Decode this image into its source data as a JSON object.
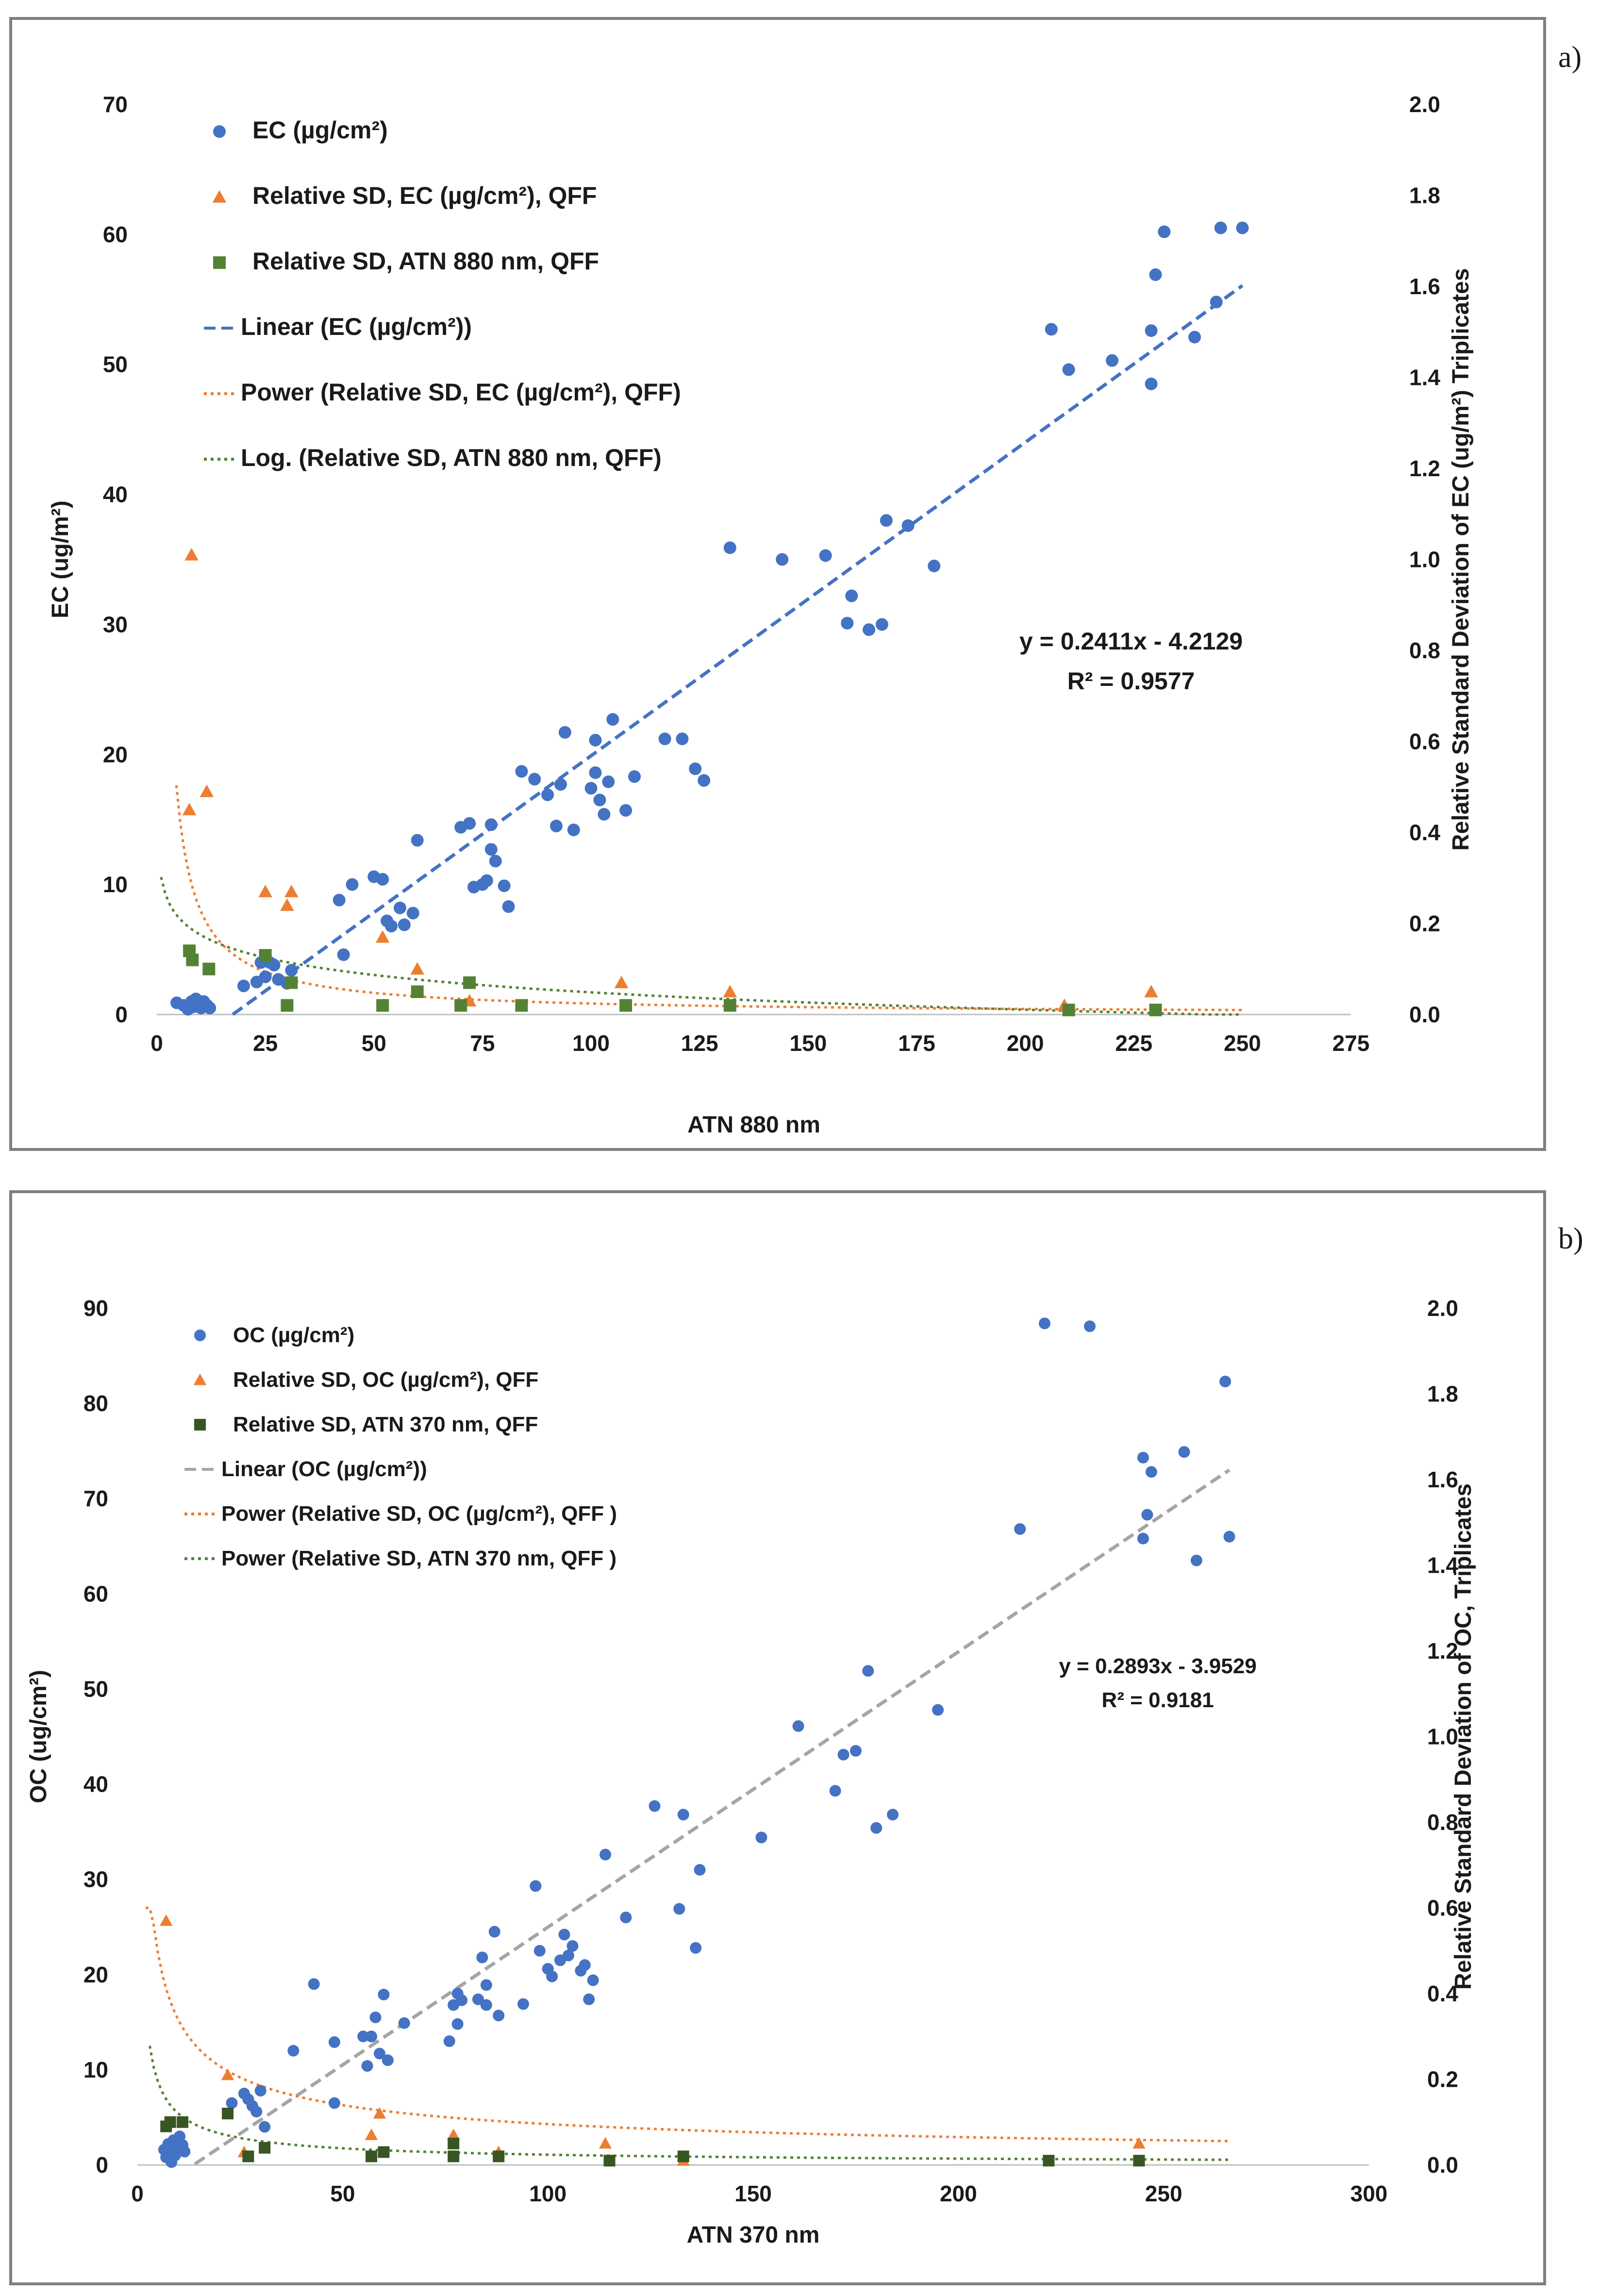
{
  "colors": {
    "ec": "#4472C4",
    "oc": "#4472C4",
    "rsd_mass": "#ED7D31",
    "rsd_atn": "#548235",
    "rsd_atn_b": "#375623",
    "fit_ec": "#4472C4",
    "fit_oc": "#A5A5A5",
    "fit_power": "#ED7D31",
    "fit_green": "#548235",
    "frame": "#7f7f7f"
  },
  "chart_data": [
    {
      "type": "scatter",
      "panel_label": "a)",
      "xlabel": "ATN 880 nm",
      "ylabel_left": "EC (ug/m²)",
      "ylabel_right": "Relative Standard Deviation of EC (ug/m²) Triplicates",
      "xlim": [
        0,
        275
      ],
      "ylim_left": [
        0,
        70
      ],
      "ylim_right": [
        0,
        2.0
      ],
      "x_ticks": [
        "0",
        "25",
        "50",
        "75",
        "100",
        "125",
        "150",
        "175",
        "200",
        "225",
        "250",
        "275"
      ],
      "y_left_ticks": [
        "0",
        "10",
        "20",
        "30",
        "40",
        "50",
        "60",
        "70"
      ],
      "y_right_ticks": [
        "0.0",
        "0.2",
        "0.4",
        "0.6",
        "0.8",
        "1.0",
        "1.2",
        "1.4",
        "1.6",
        "1.8",
        "2.0"
      ],
      "legend": [
        "EC (µg/cm²)",
        "Relative SD,  EC (µg/cm²), QFF",
        "Relative SD, ATN 880 nm, QFF",
        "Linear (EC (µg/cm²))",
        "Power (Relative SD,  EC (µg/cm²), QFF)",
        "Log. (Relative SD, ATN 880 nm, QFF)"
      ],
      "equation": "y = 0.2411x - 4.2129",
      "r2": "R² = 0.9577",
      "fit": {
        "slope": 0.2411,
        "intercept": -4.2129,
        "x_range": [
          17.5,
          250
        ]
      },
      "power_fit": {
        "a": 2.2,
        "b": -0.98,
        "x_range": [
          4.5,
          250
        ]
      },
      "log_fit": {
        "a": 0.302,
        "b": -0.055,
        "x_range": [
          1,
          250
        ]
      },
      "series": [
        {
          "name": "EC (µg/cm²)",
          "axis": "left",
          "marker": "circle",
          "points": [
            [
              4.6,
              0.9
            ],
            [
              6.2,
              0.7
            ],
            [
              7.2,
              0.4
            ],
            [
              8.0,
              1.0
            ],
            [
              8.5,
              0.6
            ],
            [
              9.0,
              1.2
            ],
            [
              9.6,
              0.8
            ],
            [
              10.2,
              0.5
            ],
            [
              10.8,
              1.0
            ],
            [
              11.6,
              0.7
            ],
            [
              12.2,
              0.5
            ],
            [
              20,
              2.2
            ],
            [
              23,
              2.5
            ],
            [
              24,
              4.0
            ],
            [
              25,
              2.9
            ],
            [
              26,
              4.0
            ],
            [
              27,
              3.8
            ],
            [
              28,
              2.7
            ],
            [
              30,
              2.4
            ],
            [
              31,
              3.4
            ],
            [
              42,
              8.8
            ],
            [
              43,
              4.6
            ],
            [
              45,
              10.0
            ],
            [
              50,
              10.6
            ],
            [
              52,
              10.4
            ],
            [
              53,
              7.2
            ],
            [
              54,
              6.8
            ],
            [
              56,
              8.2
            ],
            [
              57,
              6.9
            ],
            [
              59,
              7.8
            ],
            [
              60,
              13.4
            ],
            [
              70,
              14.4
            ],
            [
              72,
              14.7
            ],
            [
              73,
              9.8
            ],
            [
              75,
              10.0
            ],
            [
              76,
              10.3
            ],
            [
              77,
              14.6
            ],
            [
              77,
              12.7
            ],
            [
              78,
              11.8
            ],
            [
              80,
              9.9
            ],
            [
              81,
              8.3
            ],
            [
              84,
              18.7
            ],
            [
              87,
              18.1
            ],
            [
              90,
              16.9
            ],
            [
              92,
              14.5
            ],
            [
              93,
              17.7
            ],
            [
              94,
              21.7
            ],
            [
              96,
              14.2
            ],
            [
              100,
              17.4
            ],
            [
              101,
              21.1
            ],
            [
              101,
              18.6
            ],
            [
              102,
              16.5
            ],
            [
              103,
              15.4
            ],
            [
              104,
              17.9
            ],
            [
              105,
              22.7
            ],
            [
              108,
              15.7
            ],
            [
              110,
              18.3
            ],
            [
              117,
              21.2
            ],
            [
              121,
              21.2
            ],
            [
              124,
              18.9
            ],
            [
              126,
              18.0
            ],
            [
              132,
              35.9
            ],
            [
              144,
              35.0
            ],
            [
              154,
              35.3
            ],
            [
              159,
              30.1
            ],
            [
              160,
              32.2
            ],
            [
              164,
              29.6
            ],
            [
              167,
              30.0
            ],
            [
              168,
              38.0
            ],
            [
              173,
              37.6
            ],
            [
              179,
              34.5
            ],
            [
              206,
              52.7
            ],
            [
              210,
              49.6
            ],
            [
              220,
              50.3
            ],
            [
              229,
              48.5
            ],
            [
              229,
              52.6
            ],
            [
              230,
              56.9
            ],
            [
              232,
              60.2
            ],
            [
              239,
              52.1
            ],
            [
              244,
              54.8
            ],
            [
              245,
              60.5
            ],
            [
              250,
              60.5
            ]
          ]
        },
        {
          "name": "Relative SD,  EC (µg/cm²), QFF",
          "axis": "right",
          "marker": "triangle",
          "points": [
            [
              7.5,
              0.45
            ],
            [
              8.0,
              1.01
            ],
            [
              11.5,
              0.49
            ],
            [
              25,
              0.27
            ],
            [
              30,
              0.24
            ],
            [
              31,
              0.27
            ],
            [
              52,
              0.17
            ],
            [
              60,
              0.1
            ],
            [
              72,
              0.03
            ],
            [
              107,
              0.07
            ],
            [
              132,
              0.05
            ],
            [
              209,
              0.02
            ],
            [
              229,
              0.05
            ]
          ]
        },
        {
          "name": "Relative SD, ATN 880 nm, QFF",
          "axis": "right",
          "marker": "square",
          "points": [
            [
              7.5,
              0.14
            ],
            [
              8.2,
              0.12
            ],
            [
              12,
              0.1
            ],
            [
              25,
              0.13
            ],
            [
              30,
              0.02
            ],
            [
              31,
              0.07
            ],
            [
              52,
              0.02
            ],
            [
              60,
              0.05
            ],
            [
              70,
              0.02
            ],
            [
              72,
              0.07
            ],
            [
              84,
              0.02
            ],
            [
              108,
              0.02
            ],
            [
              132,
              0.02
            ],
            [
              210,
              0.01
            ],
            [
              230,
              0.01
            ]
          ]
        }
      ]
    },
    {
      "type": "scatter",
      "panel_label": "b)",
      "xlabel": "ATN 370 nm",
      "ylabel_left": "OC (ug/cm²)",
      "ylabel_right": "Relative Standard Deviation of OC, Triplicates",
      "xlim": [
        0,
        300
      ],
      "ylim_left": [
        0,
        90
      ],
      "ylim_right": [
        0,
        2.0
      ],
      "x_ticks": [
        "0",
        "50",
        "100",
        "150",
        "200",
        "250",
        "300"
      ],
      "y_left_ticks": [
        "0",
        "10",
        "20",
        "30",
        "40",
        "50",
        "60",
        "70",
        "80",
        "90"
      ],
      "y_right_ticks": [
        "0.0",
        "0.2",
        "0.4",
        "0.6",
        "0.8",
        "1.0",
        "1.2",
        "1.4",
        "1.6",
        "1.8",
        "2.0"
      ],
      "legend": [
        "OC (µg/cm²)",
        "Relative SD, OC (µg/cm²), QFF",
        "Relative SD, ATN 370 nm, QFF",
        "Linear (OC (µg/cm²))",
        "Power (Relative SD, OC (µg/cm²), QFF  )",
        "Power (Relative SD, ATN 370 nm, QFF )"
      ],
      "equation": "y = 0.2893x - 3.9529",
      "r2": "R² = 0.9181",
      "fit": {
        "slope": 0.2893,
        "intercept": -3.9529,
        "x_range": [
          14,
          266
        ]
      },
      "power_fit": {
        "a": 1.2,
        "b": -0.55,
        "x_range": [
          2,
          266
        ]
      },
      "power_fit2": {
        "a": 0.6,
        "b": -0.7,
        "x_range": [
          3,
          266
        ]
      },
      "series": [
        {
          "name": "OC (µg/cm²)",
          "axis": "left",
          "marker": "circle",
          "points": [
            [
              6.5,
              1.6
            ],
            [
              7.0,
              0.8
            ],
            [
              7.5,
              2.2
            ],
            [
              8.0,
              1.2
            ],
            [
              8.3,
              0.3
            ],
            [
              8.8,
              2.6
            ],
            [
              9.2,
              1.0
            ],
            [
              9.8,
              1.8
            ],
            [
              10.3,
              3.0
            ],
            [
              11.0,
              2.1
            ],
            [
              11.5,
              1.4
            ],
            [
              23,
              6.5
            ],
            [
              26,
              7.5
            ],
            [
              27,
              6.9
            ],
            [
              28,
              6.2
            ],
            [
              29,
              5.6
            ],
            [
              30,
              7.8
            ],
            [
              31,
              4.0
            ],
            [
              38,
              12.0
            ],
            [
              43,
              19.0
            ],
            [
              48,
              12.9
            ],
            [
              48,
              6.5
            ],
            [
              55,
              13.5
            ],
            [
              56,
              10.4
            ],
            [
              57,
              13.5
            ],
            [
              58,
              15.5
            ],
            [
              59,
              11.7
            ],
            [
              60,
              17.9
            ],
            [
              61,
              11.0
            ],
            [
              65,
              14.9
            ],
            [
              76,
              13.0
            ],
            [
              77,
              16.8
            ],
            [
              78,
              18.0
            ],
            [
              78,
              14.8
            ],
            [
              79,
              17.3
            ],
            [
              83,
              17.4
            ],
            [
              84,
              21.8
            ],
            [
              85,
              18.9
            ],
            [
              85,
              16.8
            ],
            [
              87,
              24.5
            ],
            [
              88,
              15.7
            ],
            [
              94,
              16.9
            ],
            [
              97,
              29.3
            ],
            [
              98,
              22.5
            ],
            [
              100,
              20.6
            ],
            [
              101,
              19.8
            ],
            [
              103,
              21.5
            ],
            [
              104,
              24.2
            ],
            [
              105,
              22.0
            ],
            [
              106,
              23.0
            ],
            [
              108,
              20.4
            ],
            [
              109,
              21.0
            ],
            [
              110,
              17.4
            ],
            [
              111,
              19.4
            ],
            [
              114,
              32.6
            ],
            [
              119,
              26.0
            ],
            [
              126,
              37.7
            ],
            [
              132,
              26.9
            ],
            [
              133,
              36.8
            ],
            [
              136,
              22.8
            ],
            [
              137,
              31.0
            ],
            [
              152,
              34.4
            ],
            [
              161,
              46.1
            ],
            [
              170,
              39.3
            ],
            [
              172,
              43.1
            ],
            [
              175,
              43.5
            ],
            [
              178,
              51.9
            ],
            [
              180,
              35.4
            ],
            [
              184,
              36.8
            ],
            [
              195,
              47.8
            ],
            [
              215,
              66.8
            ],
            [
              221,
              88.4
            ],
            [
              232,
              88.1
            ],
            [
              245,
              74.3
            ],
            [
              245,
              65.8
            ],
            [
              246,
              68.3
            ],
            [
              247,
              72.8
            ],
            [
              255,
              74.9
            ],
            [
              258,
              63.5
            ],
            [
              265,
              82.3
            ],
            [
              266,
              66.0
            ]
          ]
        },
        {
          "name": "Relative SD, OC (µg/cm²), QFF",
          "axis": "right",
          "marker": "triangle",
          "points": [
            [
              7.0,
              0.57
            ],
            [
              8.0,
              0.1
            ],
            [
              22,
              0.21
            ],
            [
              26,
              0.03
            ],
            [
              57,
              0.07
            ],
            [
              59,
              0.12
            ],
            [
              77,
              0.07
            ],
            [
              88,
              0.03
            ],
            [
              114,
              0.05
            ],
            [
              133,
              0.01
            ],
            [
              244,
              0.05
            ]
          ]
        },
        {
          "name": "Relative SD, ATN 370 nm, QFF",
          "axis": "right",
          "marker": "square",
          "points": [
            [
              7.0,
              0.09
            ],
            [
              8.0,
              0.1
            ],
            [
              11,
              0.1
            ],
            [
              22,
              0.12
            ],
            [
              27,
              0.02
            ],
            [
              31,
              0.04
            ],
            [
              57,
              0.02
            ],
            [
              60,
              0.03
            ],
            [
              77,
              0.02
            ],
            [
              77,
              0.05
            ],
            [
              88,
              0.02
            ],
            [
              115,
              0.01
            ],
            [
              133,
              0.02
            ],
            [
              222,
              0.01
            ],
            [
              244,
              0.01
            ]
          ]
        }
      ]
    }
  ]
}
